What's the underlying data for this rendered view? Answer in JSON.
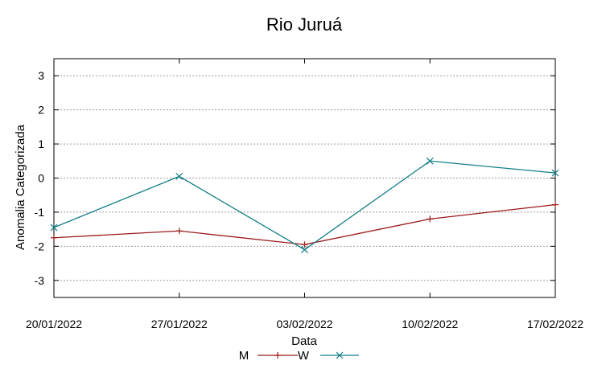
{
  "chart_data": {
    "type": "line",
    "title": "Rio Juruá",
    "xlabel": "Data",
    "ylabel": "Anomalia Categorizada",
    "categories": [
      "20/01/2022",
      "27/01/2022",
      "03/02/2022",
      "10/02/2022",
      "17/02/2022"
    ],
    "y_ticks": [
      "3",
      "2",
      "1",
      "0",
      "-1",
      "-2",
      "-3"
    ],
    "ylim": [
      -3.5,
      3.5
    ],
    "grid": true,
    "legend_position": "bottom-center",
    "series": [
      {
        "name": "M",
        "values": [
          -1.75,
          -1.55,
          -1.95,
          -1.2,
          -0.78
        ],
        "color": "#9b1a1a",
        "marker": "plus"
      },
      {
        "name": "W",
        "values": [
          -1.45,
          0.05,
          -2.1,
          0.5,
          0.15
        ],
        "color": "#137e87",
        "marker": "cross"
      }
    ]
  }
}
